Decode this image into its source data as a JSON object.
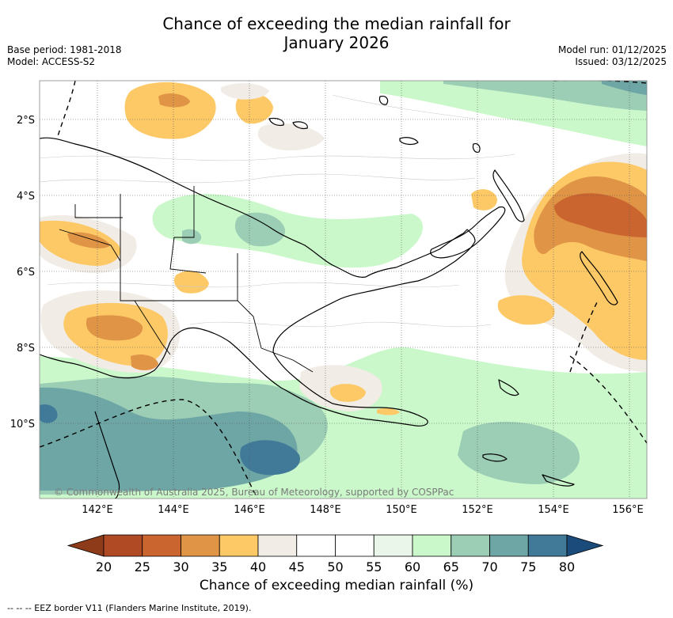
{
  "title_line1": "Chance of exceeding the median rainfall for",
  "title_line2": "January 2026",
  "base_period": "Base period: 1981-2018",
  "model": "Model: ACCESS-S2",
  "model_run": "Model run: 01/12/2025",
  "issued": "Issued: 03/12/2025",
  "lat_labels": [
    "2°S",
    "4°S",
    "6°S",
    "8°S",
    "10°S"
  ],
  "lon_labels": [
    "142°E",
    "144°E",
    "146°E",
    "148°E",
    "150°E",
    "152°E",
    "154°E",
    "156°E"
  ],
  "credit": "© Commonwealth of Australia 2025, Bureau of Meteorology, supported by COSPPac",
  "colorbar": {
    "ticks": [
      "20",
      "25",
      "30",
      "35",
      "40",
      "45",
      "50",
      "55",
      "60",
      "65",
      "70",
      "75",
      "80"
    ],
    "colors": [
      "#8e3b1a",
      "#b04a24",
      "#cb6530",
      "#e09446",
      "#fdc966",
      "#f1ece6",
      "#ffffff",
      "#ffffff",
      "#ebf6ea",
      "#caf8ca",
      "#9ccdb5",
      "#6ea6a6",
      "#417a98",
      "#1a4b7a"
    ],
    "label": "Chance of exceeding median rainfall (%)"
  },
  "footnote": "--  --  -- EEZ border V11 (Flanders Marine Institute, 2019)."
}
